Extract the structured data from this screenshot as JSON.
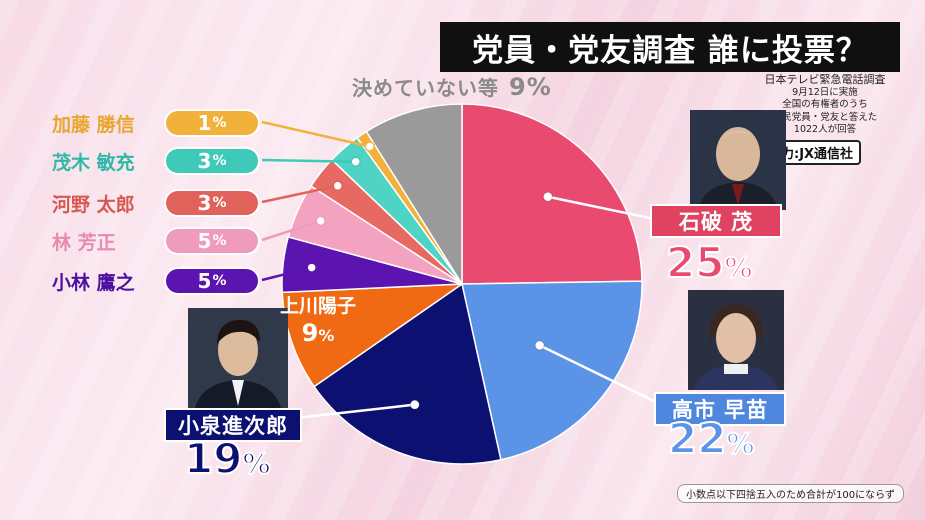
{
  "title": "党員・党友調査 誰に投票？",
  "source": {
    "line1": "日本テレビ緊急電話調査",
    "line2": "9月12日に実施",
    "line3": "全国の有権者のうち",
    "line4": "自民党員・党友と答えた",
    "line5": "1022人が回答"
  },
  "cooperation": "協力:JX通信社",
  "footnote": "小数点以下四捨五入のため合計が100にならず",
  "percent_sign": "%",
  "chart_data": {
    "type": "pie",
    "slices": [
      {
        "name": "石破 茂",
        "value": 25,
        "color": "#e94a70"
      },
      {
        "name": "高市 早苗",
        "value": 22,
        "color": "#5b93e6"
      },
      {
        "name": "小泉進次郎",
        "value": 19,
        "color": "#0c1070"
      },
      {
        "name": "上川陽子",
        "value": 9,
        "color": "#ef6a12"
      },
      {
        "name": "小林 鷹之",
        "value": 5,
        "color": "#5b14b0"
      },
      {
        "name": "林 芳正",
        "value": 5,
        "color": "#f3a3c0"
      },
      {
        "name": "河野 太郎",
        "value": 3,
        "color": "#e66a62"
      },
      {
        "name": "茂木 敏充",
        "value": 3,
        "color": "#4fd3c4"
      },
      {
        "name": "加藤 勝信",
        "value": 1,
        "color": "#f2b13b"
      },
      {
        "name": "決めていない等",
        "value": 9,
        "color": "#9a9a9a"
      }
    ]
  },
  "labels": {
    "ishiba": {
      "name": "石破 茂",
      "pct": "25"
    },
    "takaichi": {
      "name": "高市 早苗",
      "pct": "22"
    },
    "koizumi": {
      "name": "小泉進次郎",
      "pct": "19"
    },
    "kamikawa": {
      "name": "上川陽子",
      "pct": "9"
    },
    "undecided": {
      "name": "決めていない等",
      "pct": "9"
    },
    "list": [
      {
        "name": "加藤 勝信",
        "pct": "1",
        "color": "#f2b13b"
      },
      {
        "name": "茂木 敏充",
        "pct": "3",
        "color": "#3fc9b9"
      },
      {
        "name": "河野 太郎",
        "pct": "3",
        "color": "#e0625a"
      },
      {
        "name": "林 芳正",
        "pct": "5",
        "color": "#ef9bbb"
      },
      {
        "name": "小林 鷹之",
        "pct": "5",
        "color": "#5b14b0"
      }
    ]
  }
}
